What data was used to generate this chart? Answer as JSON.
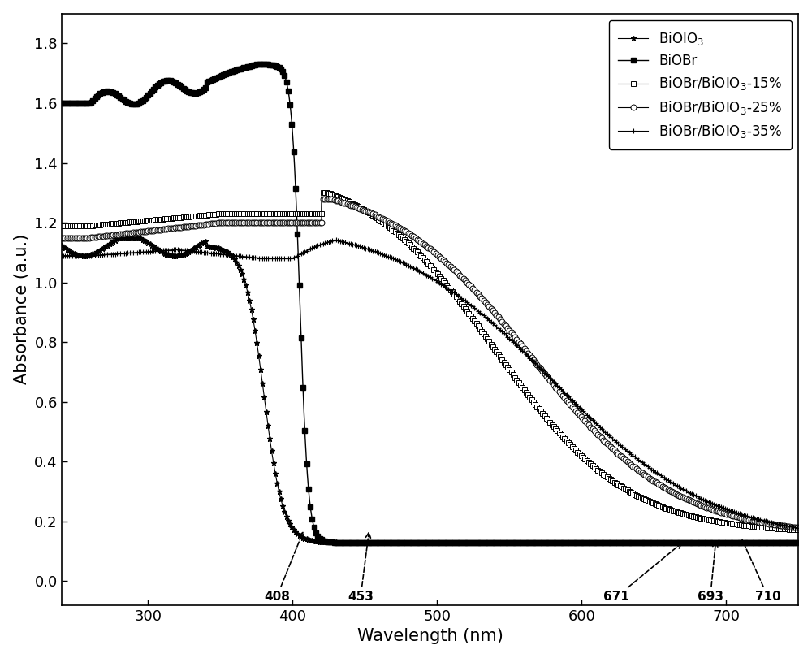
{
  "title": "",
  "xlabel": "Wavelength (nm)",
  "ylabel": "Absorbance (a.u.)",
  "xlim": [
    240,
    750
  ],
  "ylim": [
    -0.08,
    1.9
  ],
  "yticks": [
    0.0,
    0.2,
    0.4,
    0.6,
    0.8,
    1.0,
    1.2,
    1.4,
    1.6,
    1.8
  ],
  "xticks": [
    300,
    400,
    500,
    600,
    700
  ],
  "background_color": "#ffffff"
}
